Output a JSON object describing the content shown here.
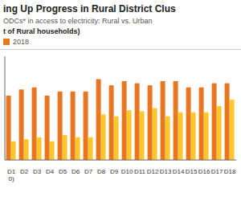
{
  "chart_data": {
    "type": "bar",
    "title": "ing Up Progress in Rural District Clus",
    "subtitle": "ODCs* in access to electricity: Rural vs. Urban",
    "ylabel": "t of Rural households)",
    "categories": [
      "D1\n0)",
      "D2",
      "D3",
      "D4",
      "D5",
      "D6",
      "D7",
      "D8",
      "D9",
      "D10",
      "D11",
      "D12",
      "D13",
      "D14",
      "D15",
      "D16",
      "D17",
      "D18"
    ],
    "series": [
      {
        "name": "2018",
        "color": "#E87722",
        "values": [
          62,
          68,
          70,
          62,
          66,
          66,
          66,
          78,
          72,
          76,
          74,
          72,
          76,
          76,
          70,
          70,
          74,
          74
        ]
      },
      {
        "color": "#FFC72C",
        "values": [
          18,
          20,
          22,
          18,
          24,
          22,
          22,
          44,
          42,
          48,
          47,
          50,
          42,
          46,
          46,
          46,
          52,
          58
        ]
      }
    ],
    "ylim": [
      0,
      100
    ],
    "grid": false,
    "legend": "upper left",
    "tick_labels": "x"
  }
}
